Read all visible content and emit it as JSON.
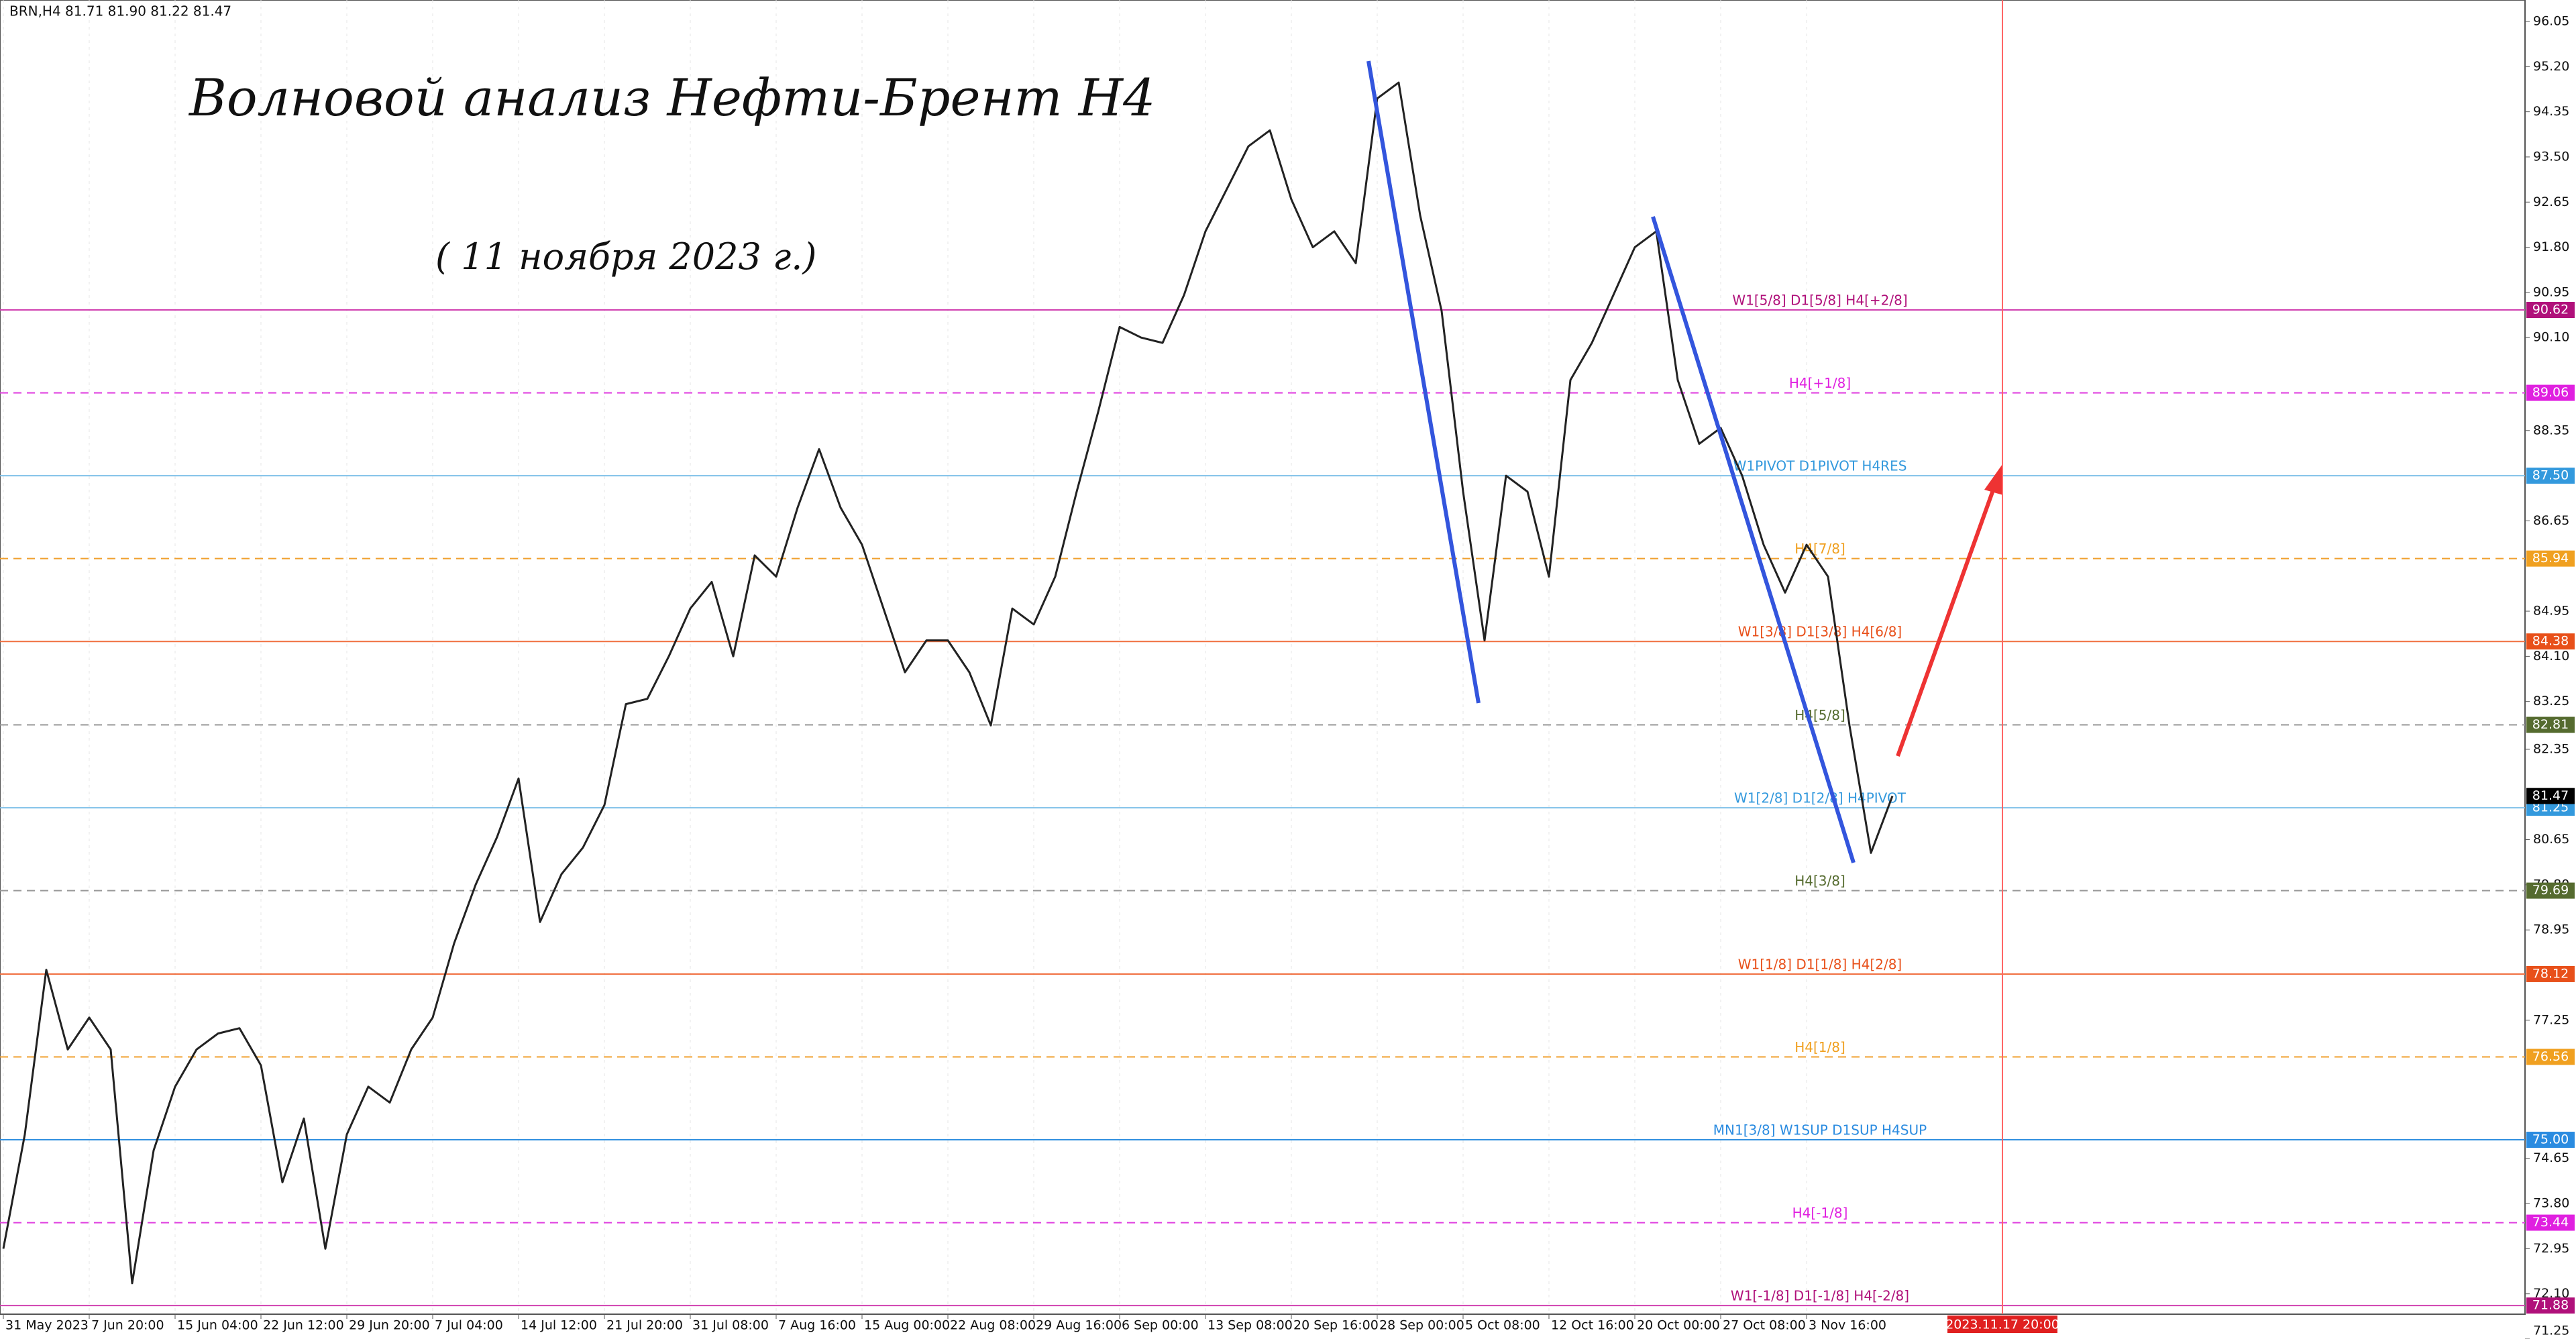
{
  "chart_data": {
    "type": "line",
    "header": "BRN,H4  81.71 81.90 81.22 81.47",
    "title": "Волновой анализ Нефти-Брент H4",
    "subtitle": "( 11 ноября 2023 г.)",
    "cursor_time": "2023.11.17 20:00",
    "categories": [
      "31 May 2023",
      null,
      null,
      null,
      "7 Jun 20:00",
      null,
      null,
      null,
      "15 Jun 04:00",
      null,
      null,
      null,
      "22 Jun 12:00",
      null,
      null,
      null,
      "29 Jun 20:00",
      null,
      null,
      null,
      "7 Jul 04:00",
      null,
      null,
      null,
      "14 Jul 12:00",
      null,
      null,
      null,
      "21 Jul 20:00",
      null,
      null,
      null,
      "31 Jul 08:00",
      null,
      null,
      null,
      "7 Aug 16:00",
      null,
      null,
      null,
      "15 Aug 00:00",
      null,
      null,
      null,
      "22 Aug 08:00",
      null,
      null,
      null,
      "29 Aug 16:00",
      null,
      null,
      null,
      "6 Sep 00:00",
      null,
      null,
      null,
      "13 Sep 08:00",
      null,
      null,
      null,
      "20 Sep 16:00",
      null,
      null,
      null,
      "28 Sep 00:00",
      null,
      null,
      null,
      "5 Oct 08:00",
      null,
      null,
      null,
      "12 Oct 16:00",
      null,
      null,
      null,
      "20 Oct 00:00",
      null,
      null,
      null,
      "27 Oct 08:00",
      null,
      null,
      null,
      "3 Nov 16:00",
      null,
      null,
      null,
      null
    ],
    "series": [
      {
        "name": "BRN,H4",
        "color": "#222222",
        "values": [
          72.95,
          75.1,
          78.2,
          76.7,
          77.3,
          76.7,
          72.3,
          74.8,
          76.0,
          76.7,
          77.0,
          77.1,
          76.4,
          74.2,
          75.4,
          72.95,
          75.1,
          76.0,
          75.7,
          76.7,
          77.3,
          78.7,
          79.8,
          80.7,
          81.8,
          79.1,
          80.0,
          80.5,
          81.3,
          83.2,
          83.3,
          84.1,
          85.0,
          85.5,
          84.1,
          86.0,
          85.6,
          86.9,
          88.0,
          86.9,
          86.2,
          85.0,
          83.8,
          84.4,
          84.4,
          83.8,
          82.8,
          85.0,
          84.7,
          85.6,
          87.2,
          88.7,
          90.3,
          90.1,
          90.0,
          90.9,
          92.1,
          92.9,
          93.7,
          94.0,
          92.7,
          91.8,
          92.1,
          91.5,
          94.6,
          94.9,
          92.4,
          90.6,
          87.2,
          84.4,
          87.5,
          87.2,
          85.6,
          89.3,
          90.0,
          90.9,
          91.8,
          92.1,
          89.3,
          88.1,
          88.4,
          87.5,
          86.2,
          85.3,
          86.2,
          85.6,
          82.8,
          80.4,
          81.47
        ]
      }
    ],
    "ylim": [
      71.25,
      96.05
    ],
    "yticks": [
      96.05,
      {
        "value": 95.2,
        "label": "95.20"
      },
      94.35,
      {
        "value": 93.5,
        "label": "93.50"
      },
      92.65,
      {
        "value": 91.8,
        "label": "91.80"
      },
      90.95,
      {
        "value": 90.1,
        "label": "90.10"
      },
      88.35,
      86.65,
      84.95,
      {
        "value": 84.1,
        "label": "84.10"
      },
      83.25,
      82.35,
      80.65,
      {
        "value": 79.8,
        "label": "79.80"
      },
      78.95,
      77.25,
      74.65,
      {
        "value": 73.8,
        "label": "73.80"
      },
      72.95,
      {
        "value": 72.1,
        "label": "72.10"
      },
      71.25
    ],
    "last_price": 81.47,
    "levels": [
      {
        "name": "W1[5/8] D1[5/8] H4[+2/8]",
        "price": 90.62,
        "color": "#d040b0",
        "box": "#b0107a",
        "dash": false
      },
      {
        "name": "H4[+1/8]",
        "price": 89.06,
        "color": "#e040e0",
        "box": "#e020e0",
        "dash": true
      },
      {
        "name": "W1PIVOT D1PIVOT H4RES",
        "price": {
          "value": 87.5,
          "label": "87.50"
        },
        "color": "#7ec0e8",
        "box": "#3399dd",
        "dash": false
      },
      {
        "name": "H4[7/8]",
        "price": 85.94,
        "color": "#f0a030",
        "box": "#f0a020",
        "dash": true
      },
      {
        "name": "W1[3/8] D1[3/8] H4[6/8]",
        "price": 84.38,
        "color": "#f07040",
        "box": "#e8501a",
        "dash": false
      },
      {
        "name": "H4[5/8]",
        "price": 82.81,
        "color": "#999999",
        "box": "#556b2f",
        "dash": true
      },
      {
        "name": "W1[2/8] D1[2/8] H4PIVOT",
        "price": 81.25,
        "color": "#7ec0e8",
        "box": "#3399dd",
        "dash": false
      },
      {
        "name": "H4[3/8]",
        "price": 79.69,
        "color": "#999999",
        "box": "#556b2f",
        "dash": true
      },
      {
        "name": "W1[1/8] D1[1/8] H4[2/8]",
        "price": 78.12,
        "color": "#f07040",
        "box": "#e8501a",
        "dash": false
      },
      {
        "name": "H4[1/8]",
        "price": 76.56,
        "color": "#f0a030",
        "box": "#f0a020",
        "dash": true
      },
      {
        "name": "MN1[3/8] W1SUP D1SUP H4SUP",
        "price": {
          "value": 75.0,
          "label": "75.00"
        },
        "color": "#3090e0",
        "box": "#2a8be0",
        "dash": false
      },
      {
        "name": "H4[-1/8]",
        "price": 73.44,
        "color": "#e040e0",
        "box": "#e020e0",
        "dash": true
      },
      {
        "name": "W1[-1/8] D1[-1/8] H4[-2/8]",
        "price": 71.88,
        "color": "#d040b0",
        "box": "#b0107a",
        "dash": false
      }
    ]
  }
}
